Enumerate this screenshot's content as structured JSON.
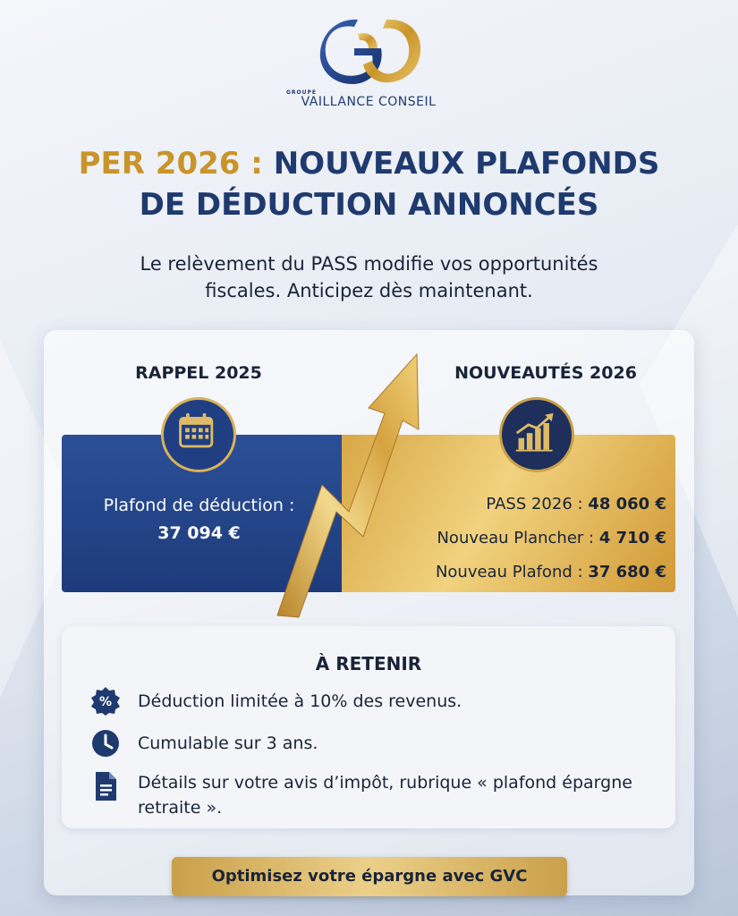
{
  "brand": {
    "group_label": "GROUPE",
    "name": "VAILLANCE CONSEIL",
    "colors": {
      "navy": "#1f3a6e",
      "gold": "#c9952a"
    }
  },
  "headline": {
    "gold_part": "PER 2026 :",
    "navy_part_1": "NOUVEAUX PLAFONDS",
    "navy_part_2": "DE DÉDUCTION ANNONCÉS"
  },
  "subtitle": {
    "line_1": "Le relèvement du PASS modifie vos opportunités",
    "line_2": "fiscales. Anticipez dès maintenant."
  },
  "rappel": {
    "title": "RAPPEL 2025",
    "icon": "calendar-icon",
    "label": "Plafond de déduction :",
    "value": "37 094 €"
  },
  "nouveautes": {
    "title": "NOUVEAUTÉS 2026",
    "icon": "chart-growth-icon",
    "rows": [
      {
        "label": "PASS 2026 :",
        "value": "48 060 €"
      },
      {
        "label": "Nouveau Plancher :",
        "value": "4 710 €"
      },
      {
        "label": "Nouveau Plafond :",
        "value": "37 680 €"
      }
    ]
  },
  "retenir": {
    "title": "À RETENIR",
    "items": [
      {
        "icon": "percent-badge-icon",
        "text": "Déduction limitée à 10% des revenus."
      },
      {
        "icon": "clock-icon",
        "text": "Cumulable sur 3 ans."
      },
      {
        "icon": "document-icon",
        "text": "Détails sur votre avis d’impôt, rubrique « plafond épargne retraite »."
      }
    ]
  },
  "cta": {
    "label": "Optimisez votre épargne avec GVC"
  }
}
